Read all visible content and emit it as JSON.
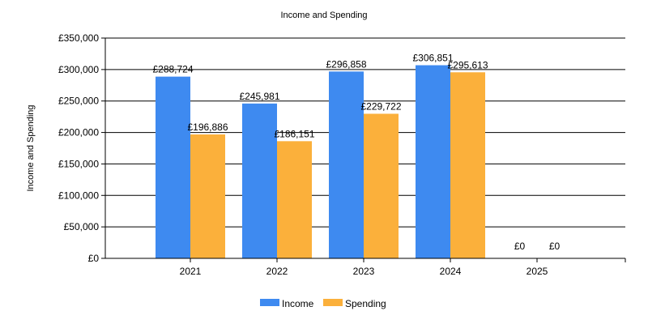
{
  "chart_data": {
    "type": "bar",
    "title": "Income and Spending",
    "xlabel": "",
    "ylabel": "Income and Spending",
    "categories": [
      "2021",
      "2022",
      "2023",
      "2024",
      "2025"
    ],
    "series": [
      {
        "name": "Income",
        "color": "#3e8af0",
        "values": [
          288724,
          245981,
          296858,
          306851,
          0
        ],
        "labels": [
          "£288,724",
          "£245,981",
          "£296,858",
          "£306,851",
          "£0"
        ]
      },
      {
        "name": "Spending",
        "color": "#fbb03b",
        "values": [
          196886,
          186151,
          229722,
          295613,
          0
        ],
        "labels": [
          "£196,886",
          "£186,151",
          "£229,722",
          "£295,613",
          "£0"
        ]
      }
    ],
    "ylim": [
      0,
      350000
    ],
    "yticks": [
      0,
      50000,
      100000,
      150000,
      200000,
      250000,
      300000,
      350000
    ],
    "ytick_labels": [
      "£0",
      "£50,000",
      "£100,000",
      "£150,000",
      "£200,000",
      "£250,000",
      "£300,000",
      "£350,000"
    ],
    "grid": true,
    "legend_position": "bottom"
  }
}
